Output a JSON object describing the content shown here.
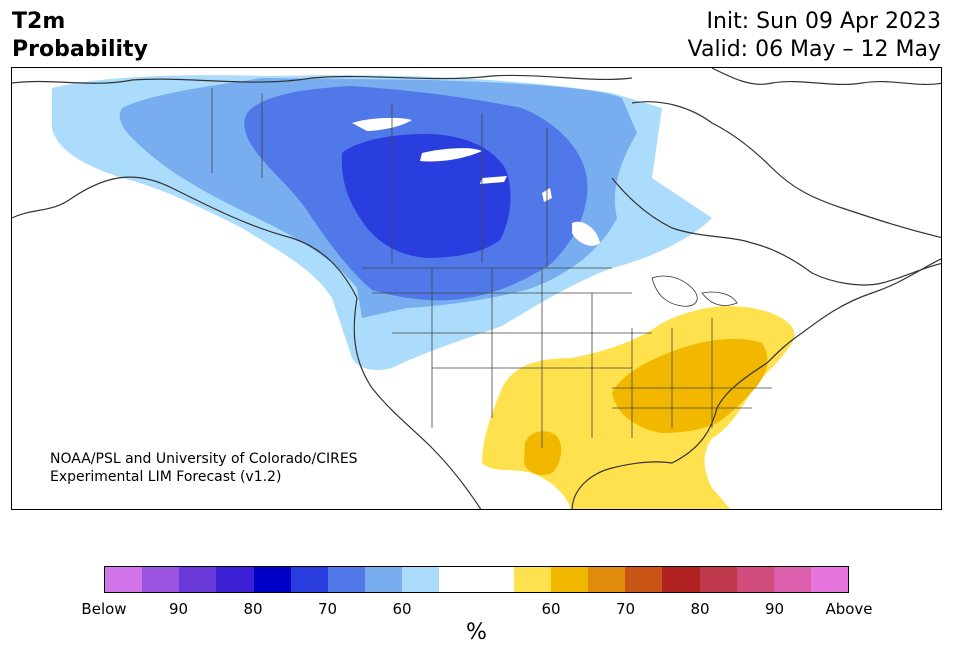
{
  "title": {
    "line1": "T2m",
    "line2": "Probability"
  },
  "header_right": {
    "init": "Init: Sun 09 Apr 2023",
    "valid": "Valid: 06 May – 12 May"
  },
  "credit": {
    "line1": "NOAA/PSL and University of Colorado/CIRES",
    "line2": "Experimental LIM Forecast (v1.2)"
  },
  "colorbar": {
    "colors": [
      "#d275ea",
      "#9c54e3",
      "#6a39d9",
      "#3a1fd5",
      "#0000c8",
      "#2a3ee0",
      "#5078e8",
      "#78aef0",
      "#acdcfb",
      "#ffffff",
      "#ffffff",
      "#ffe14d",
      "#f2b800",
      "#e08b0c",
      "#c85415",
      "#b22222",
      "#c0384c",
      "#d04c7c",
      "#dc5fae",
      "#e574dc"
    ],
    "tick_labels": [
      "Below",
      "90",
      "80",
      "70",
      "60",
      "60",
      "70",
      "80",
      "90",
      "Above"
    ],
    "unit": "%"
  },
  "legend_colors": {
    "below_60": "#acdcfb",
    "below_70": "#78aef0",
    "below_80": "#5078e8",
    "below_85": "#2a3ee0",
    "above_60": "#ffe14d",
    "above_70": "#f2b800"
  }
}
